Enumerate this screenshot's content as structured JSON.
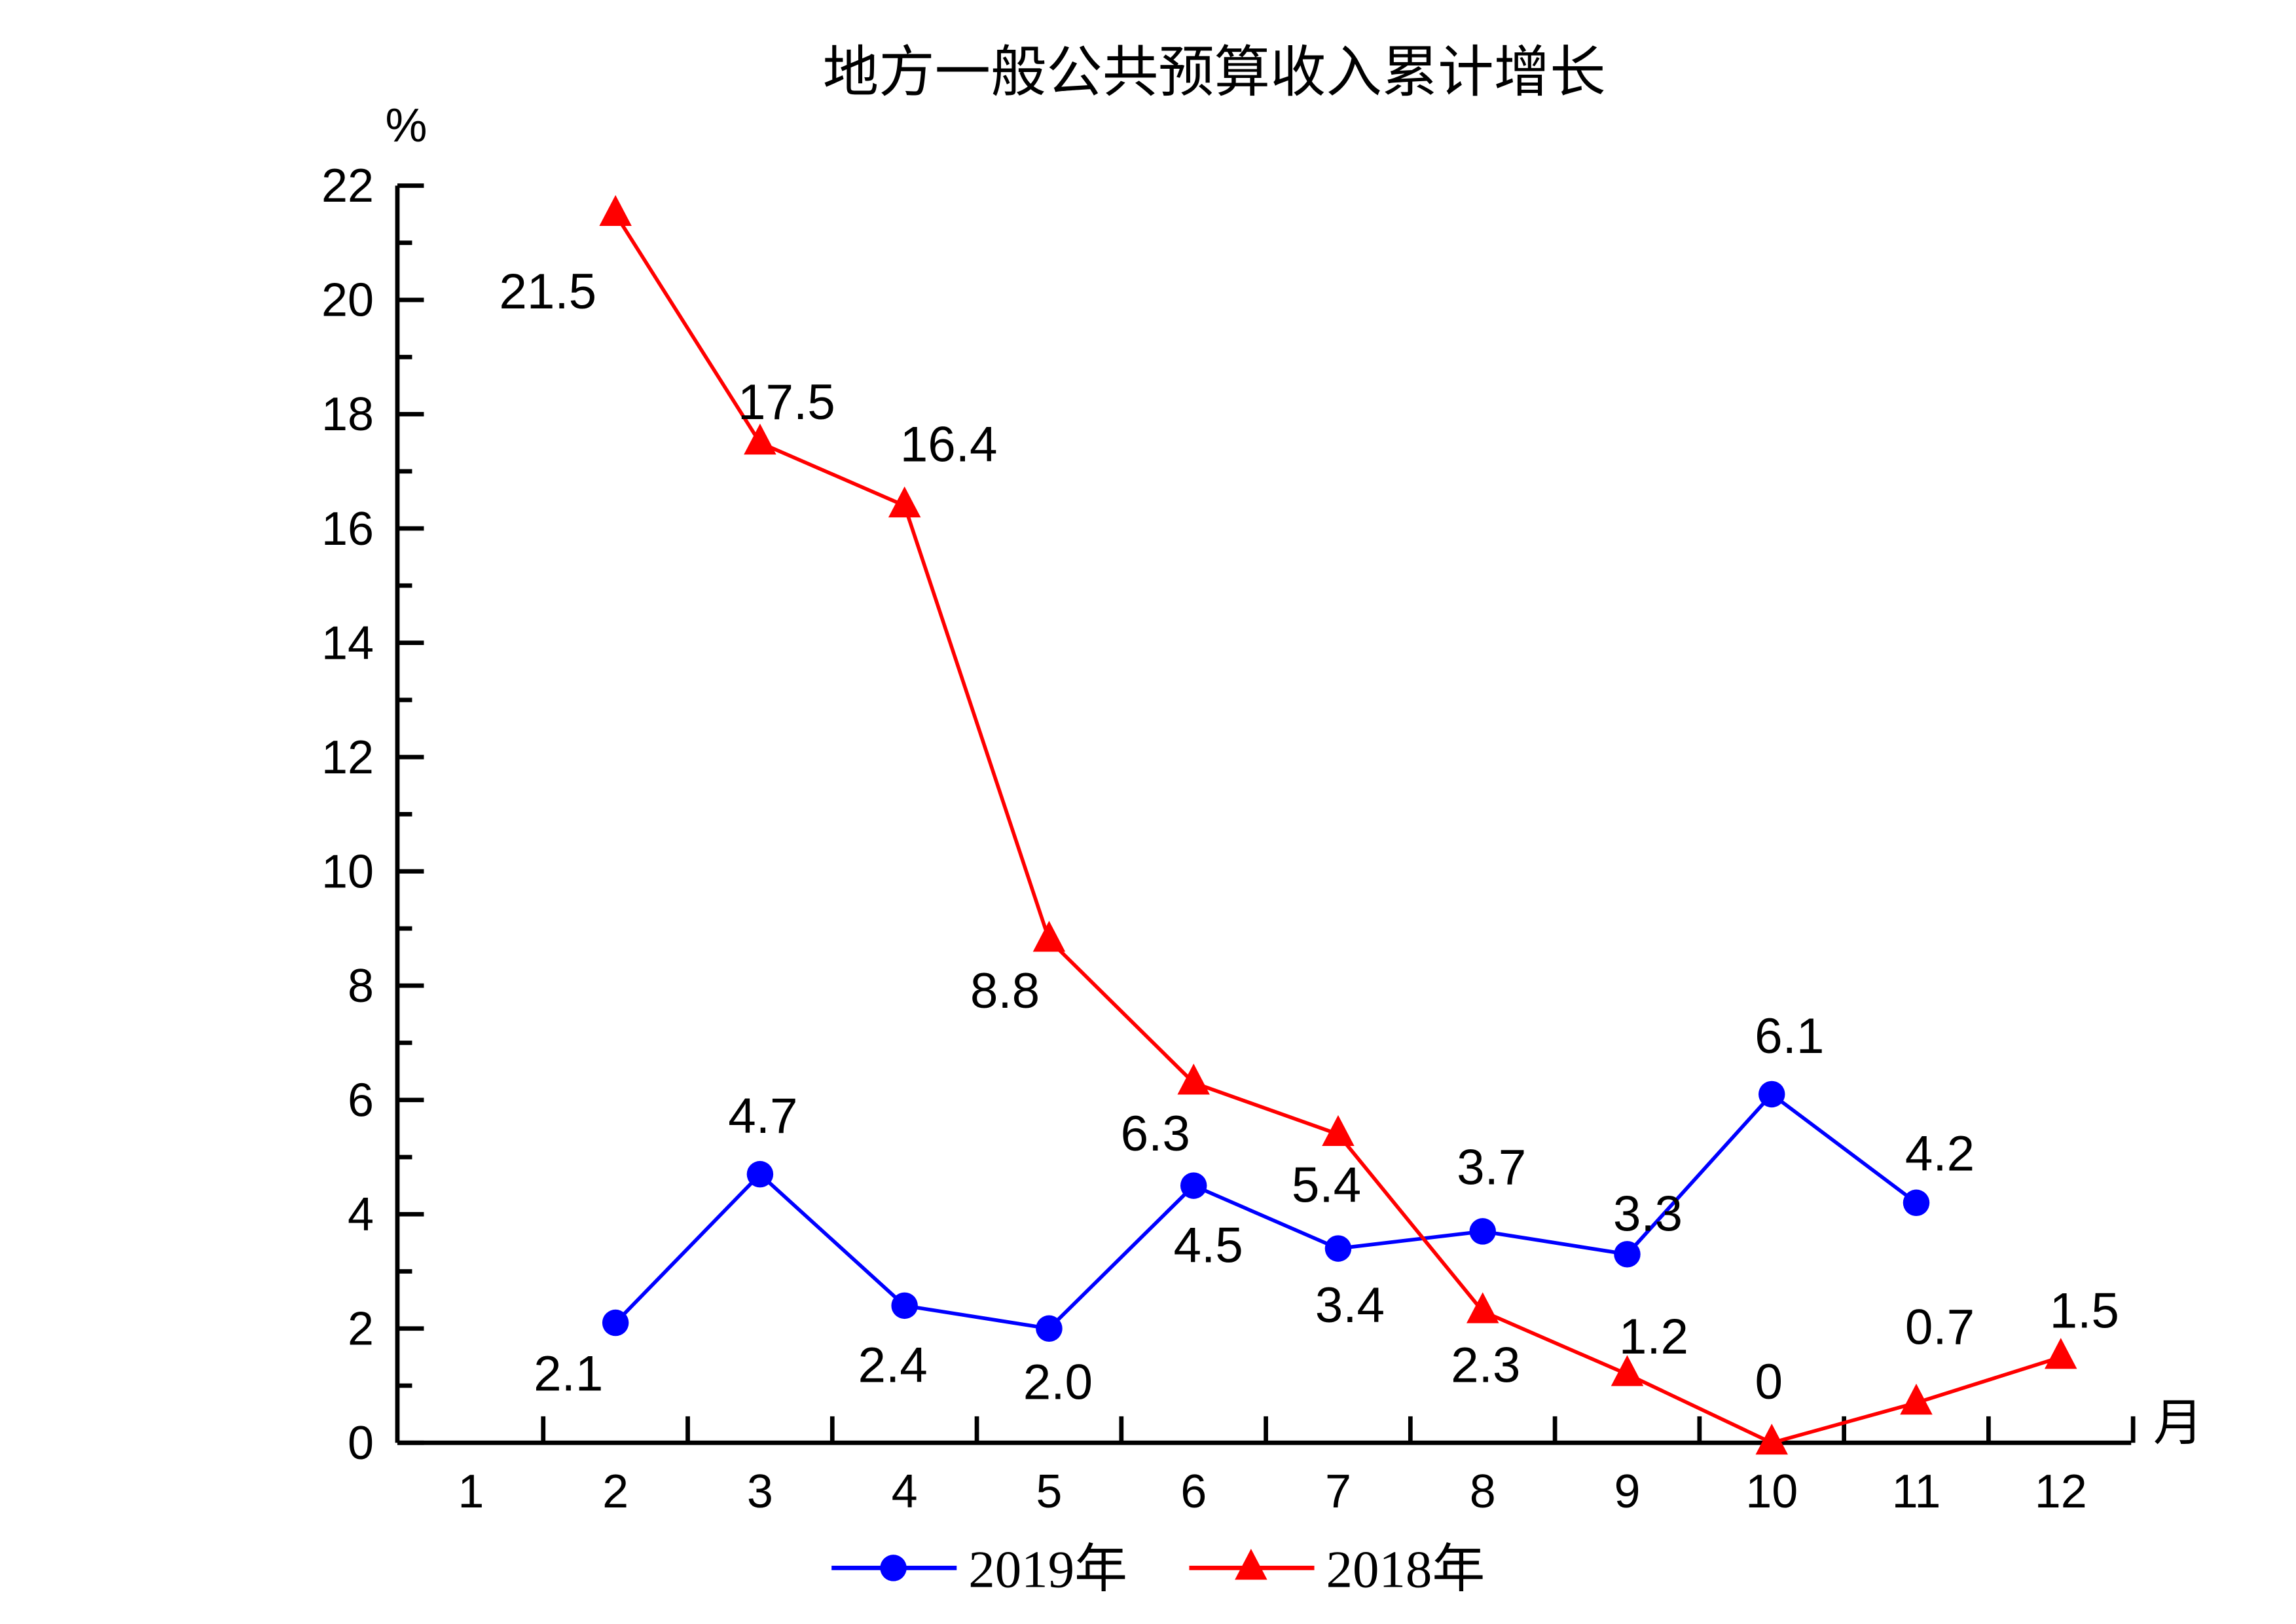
{
  "chart_data": {
    "type": "line",
    "title": "地方一般公共预算收入累计增长",
    "ylabel": "%",
    "xlabel": "月",
    "ylim": [
      0,
      22
    ],
    "yticks": [
      "0",
      "2",
      "4",
      "6",
      "8",
      "10",
      "12",
      "14",
      "16",
      "18",
      "20",
      "22"
    ],
    "x": [
      "1",
      "2",
      "3",
      "4",
      "5",
      "6",
      "7",
      "8",
      "9",
      "10",
      "11",
      "12"
    ],
    "grid": false,
    "legend_position": "bottom",
    "series": [
      {
        "name": "2019年",
        "color": "#0000ff",
        "marker": "circle",
        "values": [
          null,
          2.1,
          4.7,
          2.4,
          2.0,
          4.5,
          3.4,
          3.7,
          3.3,
          6.1,
          4.2,
          null
        ],
        "labels": [
          null,
          "2.1",
          "4.7",
          "2.4",
          "2.0",
          "4.5",
          "3.4",
          "3.7",
          "3.3",
          "6.1",
          "4.2",
          null
        ]
      },
      {
        "name": "2018年",
        "color": "#ff0000",
        "marker": "triangle",
        "values": [
          null,
          21.5,
          17.5,
          16.4,
          8.8,
          6.3,
          5.4,
          2.3,
          1.2,
          0,
          0.7,
          1.5
        ],
        "labels": [
          null,
          "21.5",
          "17.5",
          "16.4",
          "8.8",
          "6.3",
          "5.4",
          "2.3",
          "1.2",
          "0",
          "0.7",
          "1.5"
        ]
      }
    ]
  }
}
